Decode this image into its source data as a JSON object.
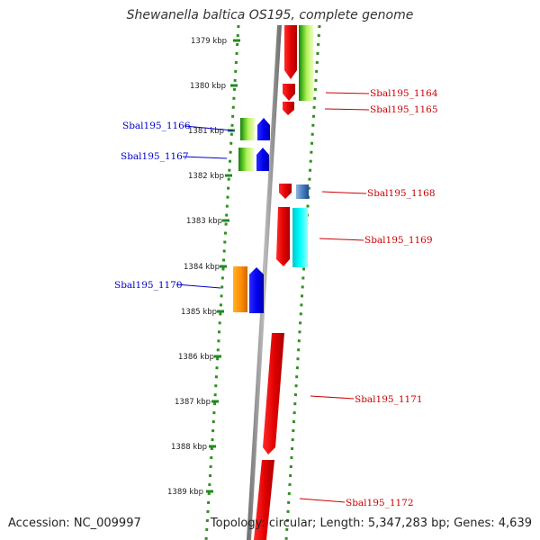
{
  "title": "Shewanella baltica OS195, complete genome",
  "footer": {
    "accession": "Accession: NC_009997",
    "summary": "Topology: circular; Length: 5,347,283 bp; Genes: 4,639"
  },
  "colors": {
    "backbone": "#8a8a8a",
    "dotted_track": "#2f8f1f",
    "forward_label": "#cc0000",
    "reverse_label": "#0000cc",
    "tick_mark": "#1f8a1f"
  },
  "ticks": [
    "1379 kbp",
    "1380 kbp",
    "1381 kbp",
    "1382 kbp",
    "1383 kbp",
    "1384 kbp",
    "1385 kbp",
    "1386 kbp",
    "1387 kbp",
    "1388 kbp",
    "1389 kbp"
  ],
  "labels": {
    "right": [
      "Sbal195_1164",
      "Sbal195_1165",
      "Sbal195_1168",
      "Sbal195_1169",
      "Sbal195_1171",
      "Sbal195_1172"
    ],
    "left": [
      "Sbal195_1166",
      "Sbal195_1167",
      "Sbal195_1170"
    ]
  }
}
